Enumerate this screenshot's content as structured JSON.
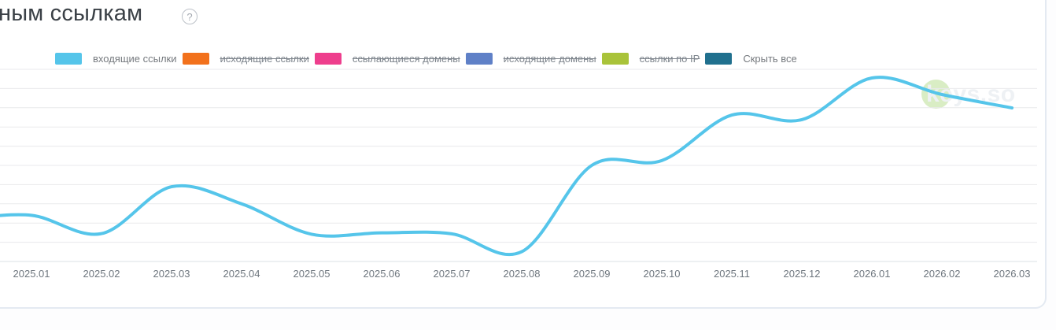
{
  "page": {
    "title": "ным ссылкам",
    "help_glyph": "?"
  },
  "legend": {
    "items": [
      {
        "key": "incoming-links",
        "label": "входящие ссылки",
        "color": "#55C5EA",
        "hidden": false
      },
      {
        "key": "outgoing-links",
        "label": "исходящие ссылки",
        "color": "#F2711C",
        "hidden": true
      },
      {
        "key": "referring-domains",
        "label": "ссылающиеся домены",
        "color": "#EE3E8D",
        "hidden": true
      },
      {
        "key": "outgoing-domains",
        "label": "исходящие домены",
        "color": "#5F80C7",
        "hidden": true
      },
      {
        "key": "links-by-ip",
        "label": "ссылки по IP",
        "color": "#A9C33A",
        "hidden": true
      },
      {
        "key": "hide-all",
        "label": "Скрыть все",
        "color": "#20708E",
        "hidden": false
      }
    ]
  },
  "watermark": {
    "text": "keys.so",
    "circle_color": "#D9EDC4"
  },
  "chart_data": {
    "type": "line",
    "title_visible_fragment": "ным ссылкам",
    "x_categories": [
      "2025.01",
      "2025.02",
      "2025.03",
      "2025.04",
      "2025.05",
      "2025.06",
      "2025.07",
      "2025.08",
      "2025.09",
      "2025.10",
      "2025.11",
      "2025.12",
      "2026.01",
      "2026.02",
      "2026.03"
    ],
    "series": [
      {
        "name": "входящие ссылки",
        "color": "#55C5EA",
        "values_percent_of_plot_height": [
          24.0,
          14.5,
          38.9,
          30.0,
          14.2,
          14.9,
          14.4,
          5.1,
          50.0,
          52.5,
          76.2,
          73.8,
          95.5,
          86.9,
          79.9
        ],
        "offscreen_lead_value_percent": 22.0
      }
    ],
    "hidden_series": [
      "исходящие ссылки",
      "ссылающиеся домены",
      "исходящие домены",
      "ссылки по IP"
    ],
    "y_axis_tick_labels": "not visible (chart cropped at left edge)",
    "legend_position": "top",
    "grid": "horizontal gridlines only"
  }
}
